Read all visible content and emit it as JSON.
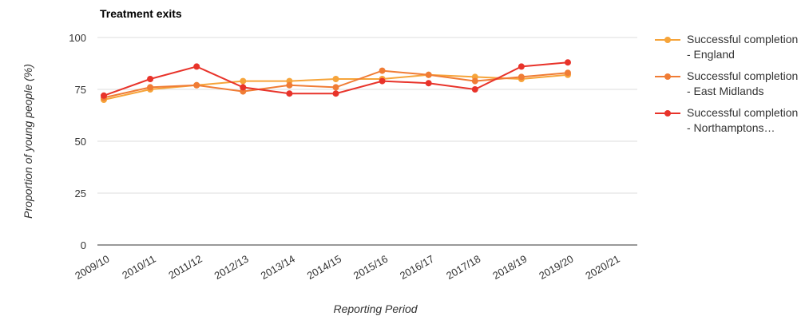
{
  "chart_data": {
    "type": "line",
    "title": "Treatment exits",
    "x_label": "Reporting Period",
    "y_label": "Proportion of young people (%)",
    "categories": [
      "2009/10",
      "2010/11",
      "2011/12",
      "2012/13",
      "2013/14",
      "2014/15",
      "2015/16",
      "2016/17",
      "2017/18",
      "2018/19",
      "2019/20",
      "2020/21"
    ],
    "series": [
      {
        "name": "Successful completion - England",
        "color": "#f6a43a",
        "values": [
          70,
          75,
          77,
          79,
          79,
          80,
          80,
          82,
          81,
          80,
          82,
          null
        ]
      },
      {
        "name": "Successful completion - East Midlands",
        "color": "#f07c35",
        "values": [
          71,
          76,
          77,
          74,
          77,
          76,
          84,
          82,
          79,
          81,
          83,
          null
        ]
      },
      {
        "name": "Successful completion - Northamptons…",
        "color": "#e8332a",
        "values": [
          72,
          80,
          86,
          76,
          73,
          73,
          79,
          78,
          75,
          86,
          88,
          null
        ]
      }
    ],
    "ylim": [
      0,
      100
    ],
    "yticks": [
      0,
      25,
      50,
      75,
      100
    ],
    "grid": true,
    "legend": "right"
  }
}
